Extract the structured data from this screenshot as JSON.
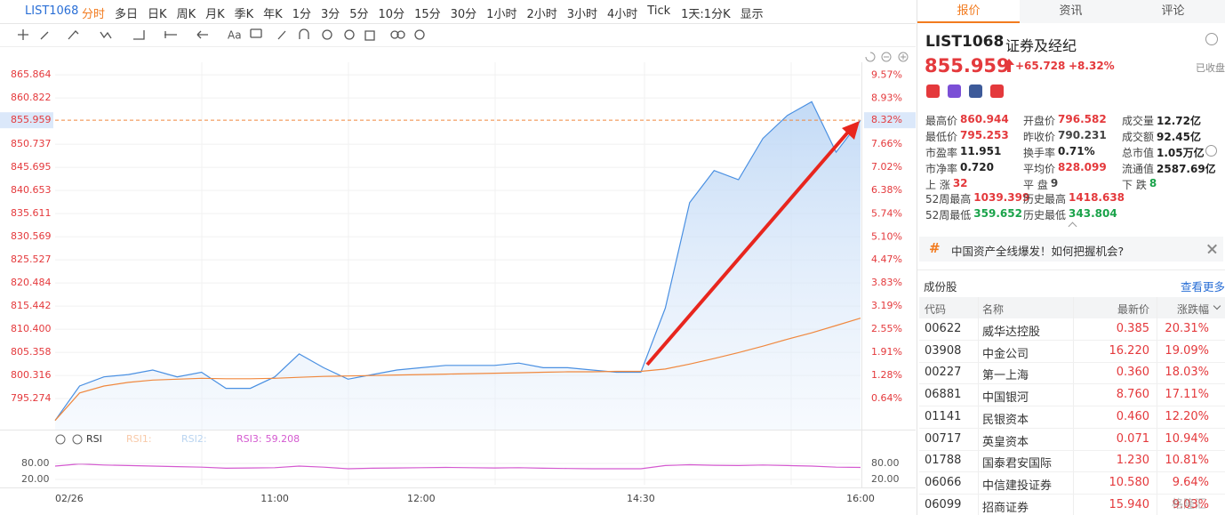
{
  "toolbar": {
    "symbol": "LIST1068",
    "periods": [
      "分时",
      "多日",
      "日K",
      "周K",
      "月K",
      "季K",
      "年K",
      "1分",
      "3分",
      "5分",
      "10分",
      "15分",
      "30分",
      "1小时",
      "2小时",
      "3小时",
      "4小时",
      "Tick",
      "1天:1分K",
      "显示"
    ]
  },
  "chart": {
    "type": "line",
    "x": [
      0,
      10,
      20,
      30,
      40,
      50,
      60,
      70,
      80,
      90,
      100,
      110,
      120,
      130,
      140,
      150,
      160,
      170,
      180,
      190,
      200,
      210,
      220,
      230,
      240,
      250,
      260,
      270,
      280,
      290,
      300,
      310,
      320,
      330
    ],
    "xlim": [
      0,
      330
    ],
    "xticks": [
      {
        "value": 0,
        "label": "02/26"
      },
      {
        "value": 90,
        "label": "11:00"
      },
      {
        "value": 150,
        "label": "12:00"
      },
      {
        "value": 240,
        "label": "14:30"
      },
      {
        "value": 330,
        "label": "16:00"
      }
    ],
    "ylim": [
      788.5,
      868.6
    ],
    "yticks": [
      865.864,
      860.822,
      855.959,
      850.737,
      845.695,
      840.653,
      835.611,
      830.569,
      825.527,
      820.484,
      815.442,
      {
        "value": 810.4,
        "label": "810.400"
      },
      805.358,
      800.316,
      795.274
    ],
    "y2lim": [
      -0.22,
      9.92
    ],
    "y2ticks": [
      {
        "value": 9.57,
        "label": "9.57%"
      },
      {
        "value": 8.93,
        "label": "8.93%"
      },
      {
        "value": 8.32,
        "label": "8.32%"
      },
      {
        "value": 7.66,
        "label": "7.66%"
      },
      {
        "value": 7.02,
        "label": "7.02%"
      },
      {
        "value": 6.38,
        "label": "6.38%"
      },
      {
        "value": 5.74,
        "label": "5.74%"
      },
      {
        "value": 5.1,
        "label": "5.10%"
      },
      {
        "value": 4.47,
        "label": "4.47%"
      },
      {
        "value": 3.83,
        "label": "3.83%"
      },
      {
        "value": 3.19,
        "label": "3.19%"
      },
      {
        "value": 2.55,
        "label": "2.55%"
      },
      {
        "value": 1.91,
        "label": "1.91%"
      },
      {
        "value": 1.28,
        "label": "1.28%"
      },
      {
        "value": 0.64,
        "label": "0.64%"
      }
    ],
    "series": [
      {
        "color": "#4a90e2",
        "values": [
          790.5,
          798,
          800,
          800.5,
          801.5,
          800,
          801,
          797.5,
          797.5,
          800,
          805,
          802,
          799.5,
          800.5,
          801.5,
          802,
          802.5,
          802.5,
          802.5,
          803,
          802,
          802,
          801.5,
          801,
          801,
          815,
          838,
          845,
          843,
          852,
          857,
          860,
          849,
          855.959
        ]
      },
      {
        "color": "#f0883e",
        "values": [
          790.5,
          796.5,
          798,
          798.8,
          799.3,
          799.5,
          799.7,
          799.6,
          799.6,
          799.7,
          799.9,
          800.1,
          800.2,
          800.3,
          800.4,
          800.5,
          800.6,
          800.7,
          800.8,
          800.9,
          801,
          801.1,
          801.1,
          801.2,
          801.2,
          801.7,
          802.8,
          804,
          805.3,
          806.7,
          808.2,
          809.6,
          811.2,
          812.8
        ]
      }
    ]
  },
  "rsi": {
    "label": "RSI",
    "legend": [
      {
        "label": "RSI1:",
        "color": "#f8c9a8"
      },
      {
        "label": "RSI2:",
        "color": "#b9d4f0"
      },
      {
        "label": "RSI3:",
        "color": "#d45ad0"
      }
    ],
    "rsi3_value": 59.208,
    "ylim": [
      0,
      100
    ],
    "yticks": [
      {
        "value": 80,
        "label": "80.00"
      },
      {
        "value": 20,
        "label": "20.00"
      }
    ],
    "series": [
      {
        "color": "#d45ad0",
        "values": [
          70,
          78,
          74,
          72,
          70,
          68,
          66,
          62,
          63,
          64,
          70,
          66,
          60,
          62,
          63,
          64,
          65,
          64,
          63,
          64,
          62,
          61,
          60,
          60,
          60,
          72,
          75,
          73,
          72,
          74,
          72,
          70,
          66,
          65
        ]
      }
    ]
  },
  "tabs": [
    "报价",
    "资讯",
    "评论"
  ],
  "quote": {
    "symbol": "LIST1068",
    "name": "证券及经纪",
    "price": 855.959,
    "change": "+65.728",
    "change_pct": "+8.32%",
    "status": "已收盘",
    "stats": [
      [
        {
          "label": "最高价",
          "value": "860.944",
          "color": "#e4393c"
        },
        {
          "label": "开盘价",
          "value": "796.582",
          "color": "#e4393c"
        },
        {
          "label": "成交量",
          "value": "12.72亿",
          "color": "#222"
        }
      ],
      [
        {
          "label": "最低价",
          "value": "795.253",
          "color": "#e4393c"
        },
        {
          "label": "昨收价",
          "value": "790.231",
          "color": "#444"
        },
        {
          "label": "成交额",
          "value": "92.45亿",
          "color": "#222"
        }
      ],
      [
        {
          "label": "市盈率",
          "value": "11.951",
          "color": "#222"
        },
        {
          "label": "换手率",
          "value": "0.71%",
          "color": "#222"
        },
        {
          "label": "总市值",
          "value": "1.05万亿",
          "color": "#222"
        }
      ],
      [
        {
          "label": "市净率",
          "value": "0.720",
          "color": "#222"
        },
        {
          "label": "平均价",
          "value": "828.099",
          "color": "#e4393c"
        },
        {
          "label": "流通值",
          "value": "2587.69亿",
          "color": "#222"
        }
      ],
      [
        {
          "label": "上 涨",
          "value": "32",
          "color": "#e4393c"
        },
        {
          "label": "平 盘",
          "value": "9",
          "color": "#444"
        },
        {
          "label": "下 跌",
          "value": "8",
          "color": "#1aa34a"
        }
      ],
      [
        {
          "label": "52周最高",
          "value": "1039.399",
          "color": "#e4393c"
        },
        {
          "label": "历史最高",
          "value": "1418.638",
          "color": "#e4393c"
        }
      ],
      [
        {
          "label": "52周最低",
          "value": "359.652",
          "color": "#1aa34a"
        },
        {
          "label": "历史最低",
          "value": "343.804",
          "color": "#1aa34a"
        }
      ]
    ]
  },
  "banner": {
    "icon": "#",
    "text": "中国资产全线爆发！如何把握机会?"
  },
  "constituents": {
    "title": "成份股",
    "more": "查看更多",
    "columns": [
      "代码",
      "名称",
      "最新价",
      "涨跌幅"
    ],
    "rows": [
      [
        "00622",
        "威华达控股",
        "0.385",
        "20.31%"
      ],
      [
        "03908",
        "中金公司",
        "16.220",
        "19.09%"
      ],
      [
        "00227",
        "第一上海",
        "0.360",
        "18.03%"
      ],
      [
        "06881",
        "中国银河",
        "8.760",
        "17.11%"
      ],
      [
        "01141",
        "民银资本",
        "0.460",
        "12.20%"
      ],
      [
        "00717",
        "英皇资本",
        "0.071",
        "10.94%"
      ],
      [
        "01788",
        "国泰君安国际",
        "1.230",
        "10.81%"
      ],
      [
        "06066",
        "中信建投证券",
        "10.580",
        "9.64%"
      ],
      [
        "06099",
        "招商证券",
        "15.940",
        "9.03%"
      ]
    ]
  },
  "watermark": "格隆汇"
}
